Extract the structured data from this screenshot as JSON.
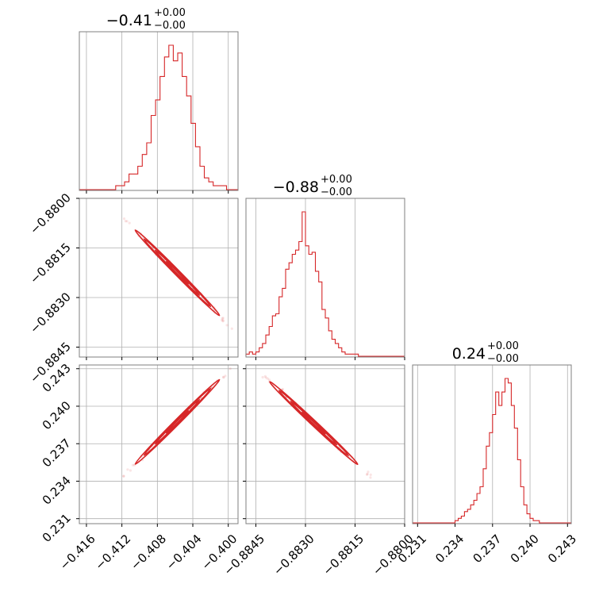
{
  "chart_data": {
    "type": "corner",
    "parameters": [
      {
        "title_value": "−0.41",
        "title_sup": "+0.00",
        "title_sub": "−0.00",
        "range": [
          -0.4168,
          -0.3989
        ],
        "ticks": [
          -0.416,
          -0.412,
          -0.408,
          -0.404,
          -0.4
        ],
        "tick_labels": [
          "−0.416",
          "−0.412",
          "−0.408",
          "−0.404",
          "−0.400"
        ],
        "hist_bin_width": 0.0005,
        "hist_start": -0.4127,
        "hist_counts": [
          1,
          1,
          2,
          4,
          4,
          6,
          9,
          12,
          19,
          23,
          29,
          34,
          37,
          33,
          35,
          29,
          24,
          17,
          11,
          6,
          3,
          2,
          1,
          1,
          1
        ]
      },
      {
        "title_value": "−0.88",
        "title_sup": "+0.00",
        "title_sub": "−0.00",
        "range": [
          -0.8848,
          -0.88
        ],
        "ticks": [
          -0.8845,
          -0.883,
          -0.8815,
          -0.88
        ],
        "tick_labels": [
          "−0.8845",
          "−0.8830",
          "−0.8815",
          "−0.8800"
        ],
        "hist_bin_width": 0.0001,
        "hist_start": -0.8848,
        "hist_counts": [
          1,
          2,
          1,
          2,
          4,
          6,
          10,
          14,
          19,
          20,
          28,
          32,
          41,
          44,
          48,
          50,
          54,
          68,
          52,
          48,
          49,
          40,
          35,
          22,
          18,
          12,
          8,
          6,
          4,
          2,
          1,
          1,
          1,
          1
        ]
      },
      {
        "title_value": "0.24",
        "title_sup": "+0.00",
        "title_sub": "−0.00",
        "range": [
          0.2306,
          0.2433
        ],
        "ticks": [
          0.231,
          0.234,
          0.237,
          0.24,
          0.243
        ],
        "tick_labels": [
          "0.231",
          "0.234",
          "0.237",
          "0.240",
          "0.243"
        ],
        "hist_bin_width": 0.00025,
        "hist_start": 0.234,
        "hist_counts": [
          1,
          2,
          3,
          5,
          6,
          8,
          10,
          13,
          16,
          24,
          34,
          40,
          48,
          58,
          52,
          58,
          64,
          62,
          52,
          42,
          28,
          16,
          8,
          4,
          2,
          1,
          1
        ]
      }
    ],
    "pairs": [
      {
        "x_param": 0,
        "y_param": 1,
        "y_tick_labels": [
          "−0.8800",
          "−0.8815",
          "−0.8830",
          "−0.8845"
        ],
        "y_ticks": [
          -0.88,
          -0.8815,
          -0.883,
          -0.8845
        ]
      },
      {
        "x_param": 0,
        "y_param": 2,
        "y_tick_labels": [
          "0.243",
          "0.240",
          "0.237",
          "0.234",
          "0.231"
        ],
        "y_ticks": [
          0.243,
          0.24,
          0.237,
          0.234,
          0.231
        ]
      },
      {
        "x_param": 1,
        "y_param": 2
      }
    ],
    "color": "#d62728",
    "grid": true
  }
}
